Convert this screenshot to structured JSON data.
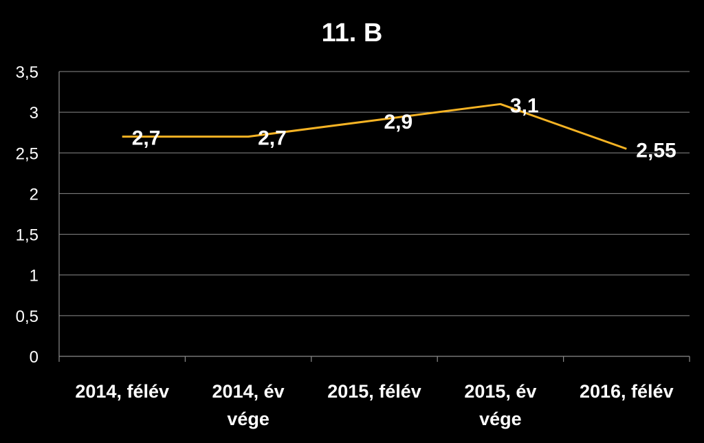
{
  "chart_data": {
    "type": "line",
    "title": "11. B",
    "categories": [
      "2014, félév",
      "2014, év vége",
      "2015, félév",
      "2015, év vége",
      "2016, félév"
    ],
    "category_lines": [
      [
        "2014, félév"
      ],
      [
        "2014, év",
        "vége"
      ],
      [
        "2015, félév"
      ],
      [
        "2015, év",
        "vége"
      ],
      [
        "2016, félév"
      ]
    ],
    "series": [
      {
        "values": [
          2.7,
          2.7,
          2.9,
          3.1,
          2.55
        ],
        "value_labels": [
          "2,7",
          "2,7",
          "2,9",
          "3,1",
          "2,55"
        ],
        "color": "#f5b324"
      }
    ],
    "ylim": [
      0,
      3.5
    ],
    "yticks": [
      0,
      0.5,
      1,
      1.5,
      2,
      2.5,
      3,
      3.5
    ],
    "ytick_labels": [
      "0",
      "0,5",
      "1",
      "1,5",
      "2",
      "2,5",
      "3",
      "3,5"
    ],
    "xlabel": "",
    "ylabel": "",
    "grid": true,
    "legend": "none",
    "background": "#000000",
    "text_color": "#ffffff",
    "grid_color": "#8c8c8c"
  }
}
